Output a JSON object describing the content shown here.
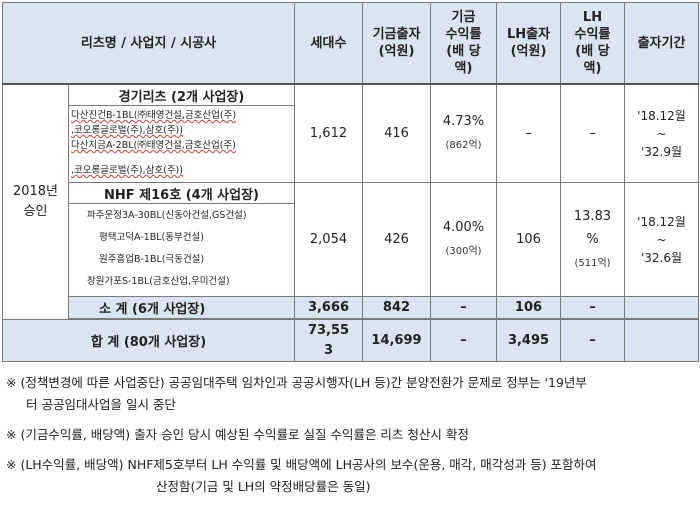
{
  "header": {
    "name": "리츠명 / 사업지 / 시공사",
    "households": "세대수",
    "funding": "기금출자",
    "funding_unit": "(억원)",
    "fund_return": "기금",
    "fund_return2": "수익률",
    "fund_return3": "(배 당",
    "fund_return4": "액)",
    "lh_funding": "LH출자",
    "lh_funding_unit": "(억원)",
    "lh_return": "LH",
    "lh_return2": "수익률",
    "lh_return3": "(배 당",
    "lh_return4": "액)",
    "period": "출자기간"
  },
  "group": {
    "label1": "2018년",
    "label2": "승인"
  },
  "gyeonggi": {
    "title": "경기리츠 (2개 사업장)",
    "entries": [
      "다산진건B-1BL(㈜태영건설,금호산업(주)",
      ",코오롱글로벌(주),삼호(주))",
      "다산지금A-2BL(㈜태영건설,금호산업(주)",
      ",코오롱글로벌(주),삼호(주))"
    ],
    "households": "1,612",
    "funding": "416",
    "fund_return": "4.73%",
    "fund_dividend": "(862억)",
    "lh_funding": "–",
    "lh_return": "–",
    "period1": "'18.12월",
    "period2": "~",
    "period3": "'32.9월"
  },
  "nhf": {
    "title": "NHF 제16호 (4개 사업장)",
    "entries": [
      "파주운정3A-30BL(신동아건설,GS건설)",
      "평택고덕A-1BL(동부건설)",
      "원주흥업B-1BL(극동건설)",
      "창원가포S-1BL(금호산업,우미건설)"
    ],
    "households": "2,054",
    "funding": "426",
    "fund_return": "4.00%",
    "fund_dividend": "(300억)",
    "lh_funding": "106",
    "lh_return1": "13.83",
    "lh_return2": "%",
    "lh_dividend": "(511억)",
    "period1": "'18.12월",
    "period2": "~",
    "period3": "'32.6월"
  },
  "subtotal": {
    "label": "소    계 (6개 사업장)",
    "households": "3,666",
    "funding": "842",
    "fund_return": "–",
    "lh_funding": "106",
    "lh_return": "–"
  },
  "total": {
    "label": "합    계 (80개 사업장)",
    "households1": "73,55",
    "households2": "3",
    "funding": "14,699",
    "fund_return": "–",
    "lh_funding": "3,495",
    "lh_return": "–"
  },
  "notes": [
    {
      "line1": "※ (정책변경에 따른 사업중단) 공공임대주택 임차인과 공공시행자(LH 등)간 분양전환가 문제로 정부는 '19년부",
      "line2": "터 공공임대사업을 일시 중단"
    },
    {
      "line1": "※ (기금수익률, 배당액) 출자 승인 당시 예상된 수익률로 실질 수익률은 리츠 청산시 확정"
    },
    {
      "line1": "※ (LH수익률, 배당액) NHF제5호부터 LH 수익률 및 배당액에 LH공사의 보수(운용, 매각, 매각성과 등) 포함하여",
      "line2": "산정함(기금 및 LH의 약정배당률은 동일)"
    }
  ]
}
